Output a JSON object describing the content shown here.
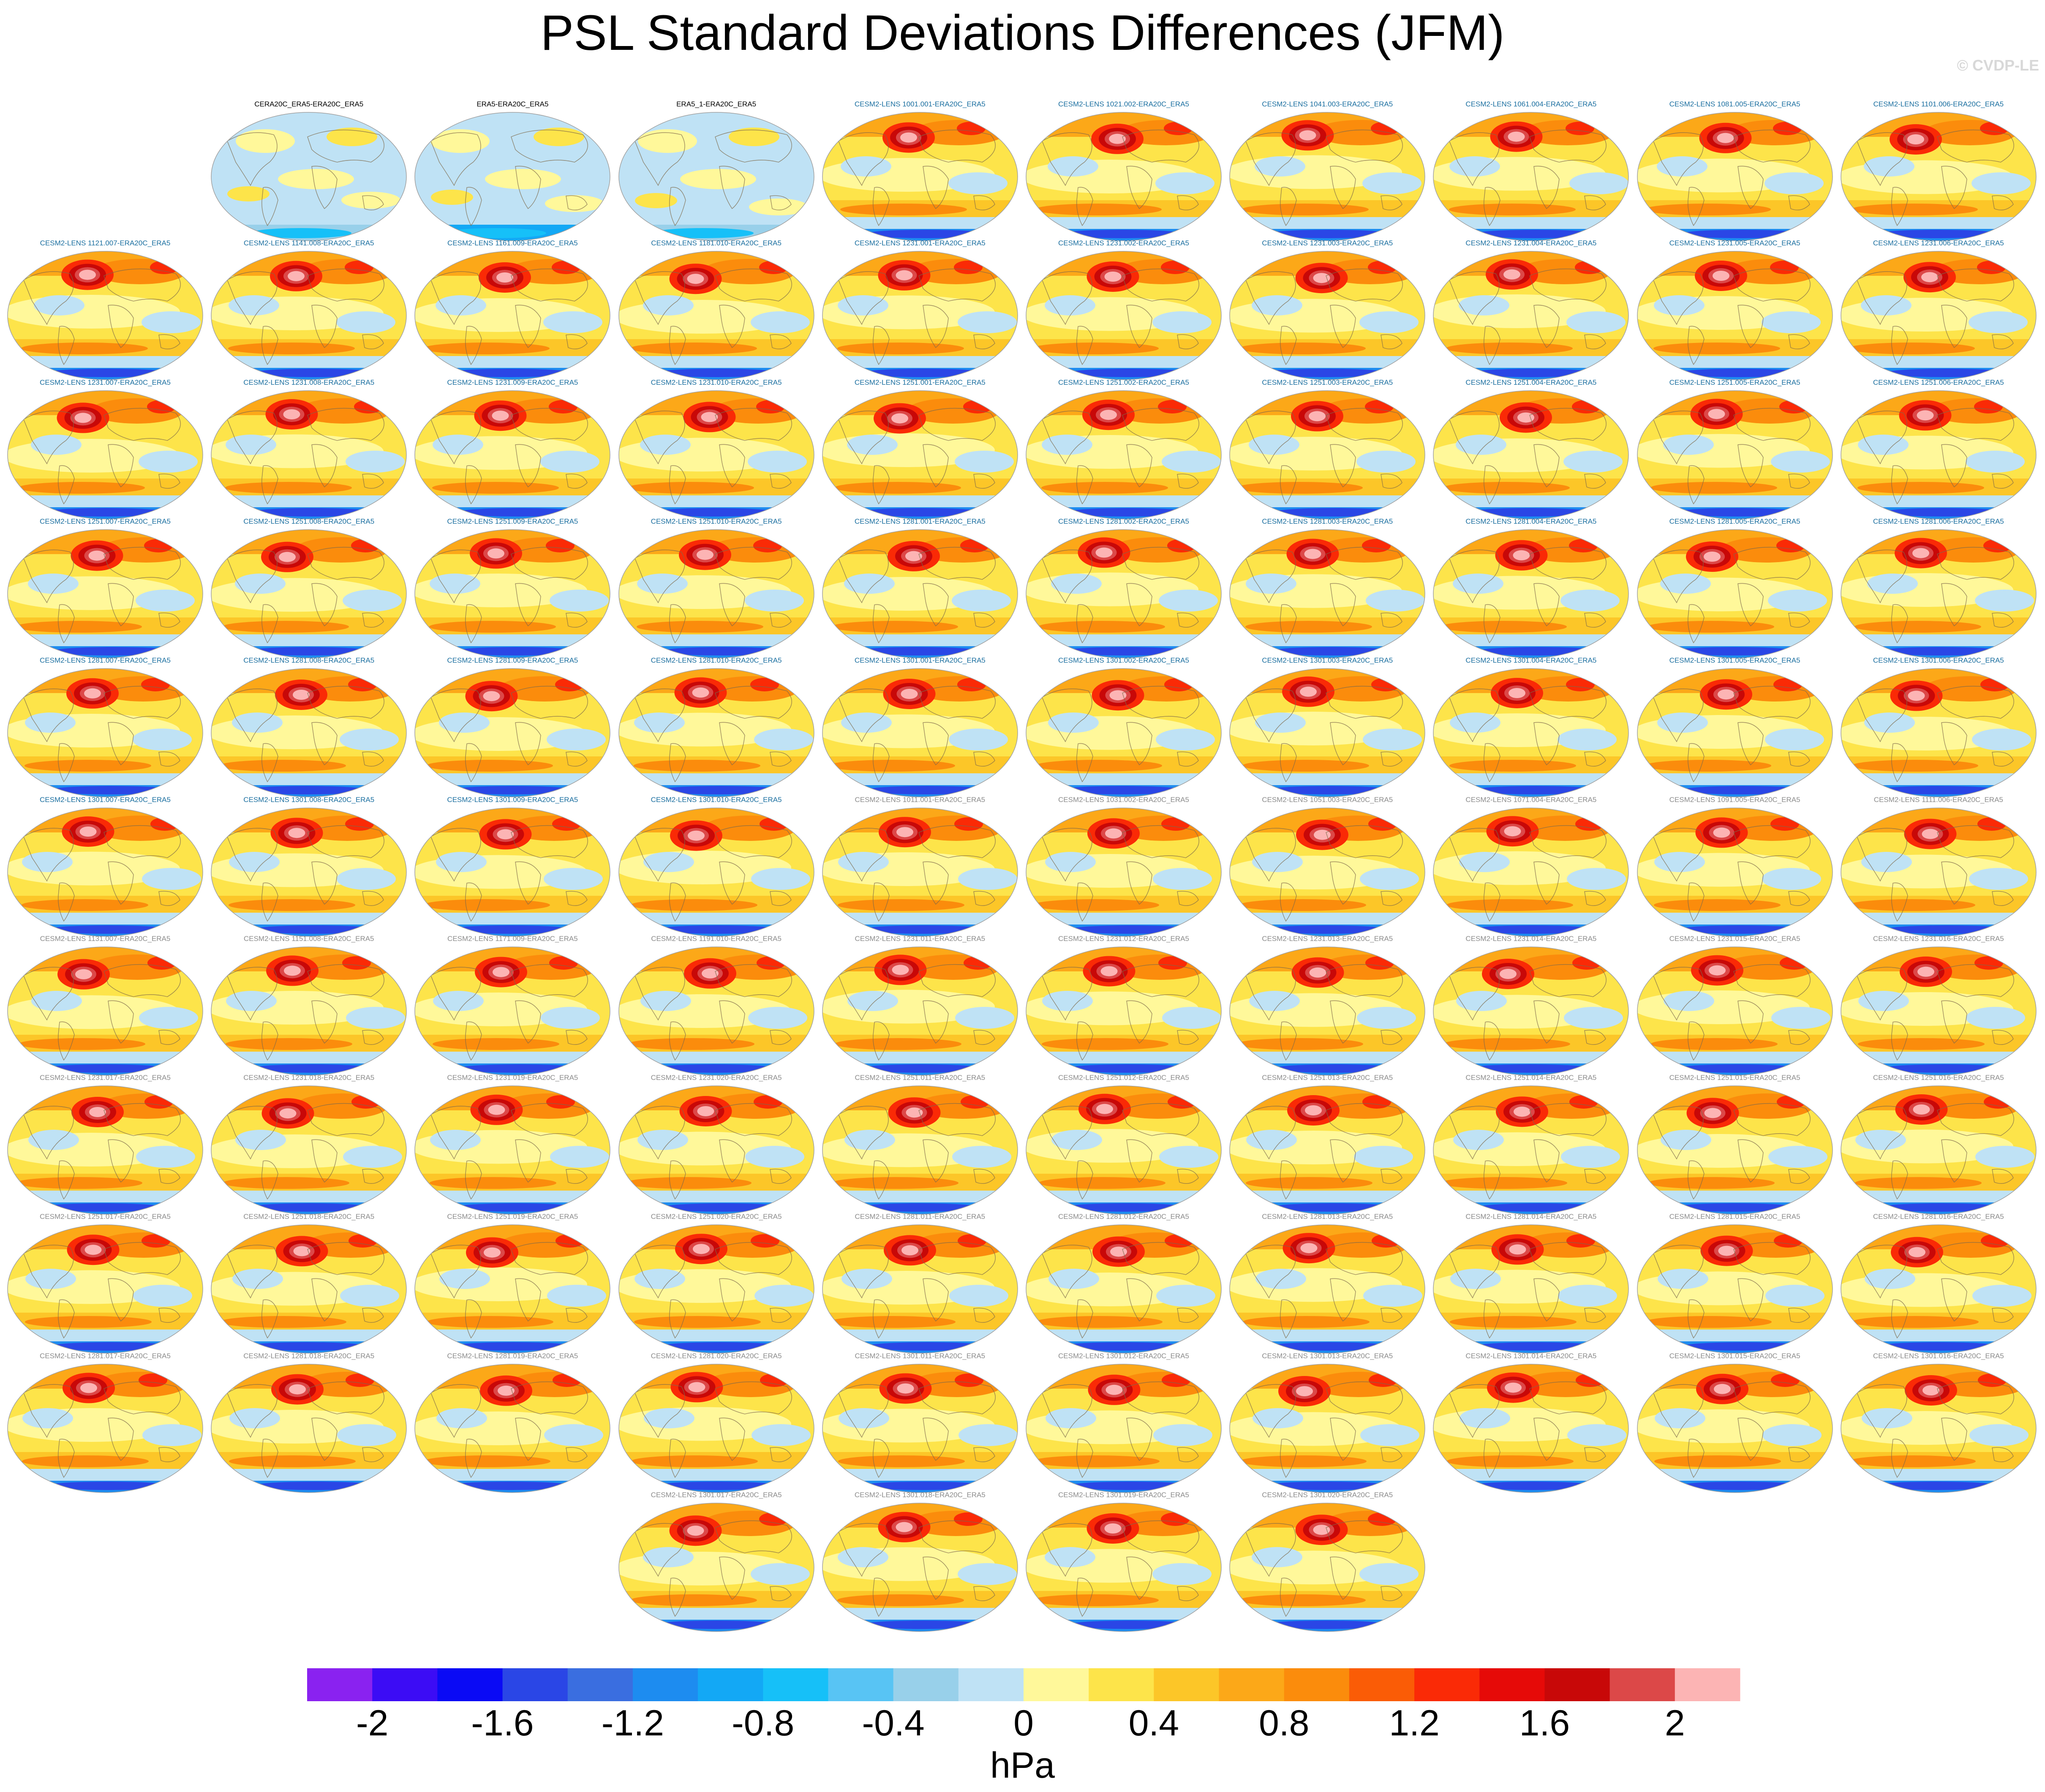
{
  "title": "PSL Standard Deviations Differences (JFM)",
  "watermark": "© CVDP-LE",
  "units": "hPa",
  "colorbar": {
    "colors": [
      "#8a22f0",
      "#3c0cf5",
      "#0a0af5",
      "#2a46e6",
      "#3a6ee0",
      "#1d8cf0",
      "#13a8f5",
      "#16c0f8",
      "#58c4f4",
      "#98d0ea",
      "#bfe2f5",
      "#fff89a",
      "#fde44a",
      "#fcc628",
      "#fca818",
      "#fb8c0c",
      "#fa5c06",
      "#fa2a06",
      "#e60a08",
      "#c80808",
      "#dc4848",
      "#fcb4b4"
    ],
    "tick_labels": [
      "-2",
      "-1.6",
      "-1.2",
      "-0.8",
      "-0.4",
      "0",
      "0.4",
      "0.8",
      "1.2",
      "1.6",
      "2"
    ]
  },
  "label_colors": {
    "obs": "#000000",
    "blue": "#1b6fa0",
    "gray": "#8c8c8c"
  },
  "panel_rows": [
    {
      "offset": 1,
      "panels": [
        {
          "label": "CERA20C_ERA5-ERA20C_ERA5",
          "style": "obs"
        },
        {
          "label": "ERA5-ERA20C_ERA5",
          "style": "obs"
        },
        {
          "label": "ERA5_1-ERA20C_ERA5",
          "style": "obs"
        },
        {
          "label": "CESM2-LENS 1001.001-ERA20C_ERA5",
          "style": "blue"
        },
        {
          "label": "CESM2-LENS 1021.002-ERA20C_ERA5",
          "style": "blue"
        },
        {
          "label": "CESM2-LENS 1041.003-ERA20C_ERA5",
          "style": "blue"
        },
        {
          "label": "CESM2-LENS 1061.004-ERA20C_ERA5",
          "style": "blue"
        },
        {
          "label": "CESM2-LENS 1081.005-ERA20C_ERA5",
          "style": "blue"
        },
        {
          "label": "CESM2-LENS 1101.006-ERA20C_ERA5",
          "style": "blue"
        }
      ]
    },
    {
      "offset": 0,
      "panels": [
        {
          "label": "CESM2-LENS 1121.007-ERA20C_ERA5",
          "style": "blue"
        },
        {
          "label": "CESM2-LENS 1141.008-ERA20C_ERA5",
          "style": "blue"
        },
        {
          "label": "CESM2-LENS 1161.009-ERA20C_ERA5",
          "style": "blue"
        },
        {
          "label": "CESM2-LENS 1181.010-ERA20C_ERA5",
          "style": "blue"
        },
        {
          "label": "CESM2-LENS 1231.001-ERA20C_ERA5",
          "style": "blue"
        },
        {
          "label": "CESM2-LENS 1231.002-ERA20C_ERA5",
          "style": "blue"
        },
        {
          "label": "CESM2-LENS 1231.003-ERA20C_ERA5",
          "style": "blue"
        },
        {
          "label": "CESM2-LENS 1231.004-ERA20C_ERA5",
          "style": "blue"
        },
        {
          "label": "CESM2-LENS 1231.005-ERA20C_ERA5",
          "style": "blue"
        },
        {
          "label": "CESM2-LENS 1231.006-ERA20C_ERA5",
          "style": "blue"
        }
      ]
    },
    {
      "offset": 0,
      "panels": [
        {
          "label": "CESM2-LENS 1231.007-ERA20C_ERA5",
          "style": "blue"
        },
        {
          "label": "CESM2-LENS 1231.008-ERA20C_ERA5",
          "style": "blue"
        },
        {
          "label": "CESM2-LENS 1231.009-ERA20C_ERA5",
          "style": "blue"
        },
        {
          "label": "CESM2-LENS 1231.010-ERA20C_ERA5",
          "style": "blue"
        },
        {
          "label": "CESM2-LENS 1251.001-ERA20C_ERA5",
          "style": "blue"
        },
        {
          "label": "CESM2-LENS 1251.002-ERA20C_ERA5",
          "style": "blue"
        },
        {
          "label": "CESM2-LENS 1251.003-ERA20C_ERA5",
          "style": "blue"
        },
        {
          "label": "CESM2-LENS 1251.004-ERA20C_ERA5",
          "style": "blue"
        },
        {
          "label": "CESM2-LENS 1251.005-ERA20C_ERA5",
          "style": "blue"
        },
        {
          "label": "CESM2-LENS 1251.006-ERA20C_ERA5",
          "style": "blue"
        }
      ]
    },
    {
      "offset": 0,
      "panels": [
        {
          "label": "CESM2-LENS 1251.007-ERA20C_ERA5",
          "style": "blue"
        },
        {
          "label": "CESM2-LENS 1251.008-ERA20C_ERA5",
          "style": "blue"
        },
        {
          "label": "CESM2-LENS 1251.009-ERA20C_ERA5",
          "style": "blue"
        },
        {
          "label": "CESM2-LENS 1251.010-ERA20C_ERA5",
          "style": "blue"
        },
        {
          "label": "CESM2-LENS 1281.001-ERA20C_ERA5",
          "style": "blue"
        },
        {
          "label": "CESM2-LENS 1281.002-ERA20C_ERA5",
          "style": "blue"
        },
        {
          "label": "CESM2-LENS 1281.003-ERA20C_ERA5",
          "style": "blue"
        },
        {
          "label": "CESM2-LENS 1281.004-ERA20C_ERA5",
          "style": "blue"
        },
        {
          "label": "CESM2-LENS 1281.005-ERA20C_ERA5",
          "style": "blue"
        },
        {
          "label": "CESM2-LENS 1281.006-ERA20C_ERA5",
          "style": "blue"
        }
      ]
    },
    {
      "offset": 0,
      "panels": [
        {
          "label": "CESM2-LENS 1281.007-ERA20C_ERA5",
          "style": "blue"
        },
        {
          "label": "CESM2-LENS 1281.008-ERA20C_ERA5",
          "style": "blue"
        },
        {
          "label": "CESM2-LENS 1281.009-ERA20C_ERA5",
          "style": "blue"
        },
        {
          "label": "CESM2-LENS 1281.010-ERA20C_ERA5",
          "style": "blue"
        },
        {
          "label": "CESM2-LENS 1301.001-ERA20C_ERA5",
          "style": "blue"
        },
        {
          "label": "CESM2-LENS 1301.002-ERA20C_ERA5",
          "style": "blue"
        },
        {
          "label": "CESM2-LENS 1301.003-ERA20C_ERA5",
          "style": "blue"
        },
        {
          "label": "CESM2-LENS 1301.004-ERA20C_ERA5",
          "style": "blue"
        },
        {
          "label": "CESM2-LENS 1301.005-ERA20C_ERA5",
          "style": "blue"
        },
        {
          "label": "CESM2-LENS 1301.006-ERA20C_ERA5",
          "style": "blue"
        }
      ]
    },
    {
      "offset": 0,
      "panels": [
        {
          "label": "CESM2-LENS 1301.007-ERA20C_ERA5",
          "style": "blue"
        },
        {
          "label": "CESM2-LENS 1301.008-ERA20C_ERA5",
          "style": "blue"
        },
        {
          "label": "CESM2-LENS 1301.009-ERA20C_ERA5",
          "style": "blue"
        },
        {
          "label": "CESM2-LENS 1301.010-ERA20C_ERA5",
          "style": "blue"
        },
        {
          "label": "CESM2-LENS 1011.001-ERA20C_ERA5",
          "style": "gray"
        },
        {
          "label": "CESM2-LENS 1031.002-ERA20C_ERA5",
          "style": "gray"
        },
        {
          "label": "CESM2-LENS 1051.003-ERA20C_ERA5",
          "style": "gray"
        },
        {
          "label": "CESM2-LENS 1071.004-ERA20C_ERA5",
          "style": "gray"
        },
        {
          "label": "CESM2-LENS 1091.005-ERA20C_ERA5",
          "style": "gray"
        },
        {
          "label": "CESM2-LENS 1111.006-ERA20C_ERA5",
          "style": "gray"
        }
      ]
    },
    {
      "offset": 0,
      "panels": [
        {
          "label": "CESM2-LENS 1131.007-ERA20C_ERA5",
          "style": "gray"
        },
        {
          "label": "CESM2-LENS 1151.008-ERA20C_ERA5",
          "style": "gray"
        },
        {
          "label": "CESM2-LENS 1171.009-ERA20C_ERA5",
          "style": "gray"
        },
        {
          "label": "CESM2-LENS 1191.010-ERA20C_ERA5",
          "style": "gray"
        },
        {
          "label": "CESM2-LENS 1231.011-ERA20C_ERA5",
          "style": "gray"
        },
        {
          "label": "CESM2-LENS 1231.012-ERA20C_ERA5",
          "style": "gray"
        },
        {
          "label": "CESM2-LENS 1231.013-ERA20C_ERA5",
          "style": "gray"
        },
        {
          "label": "CESM2-LENS 1231.014-ERA20C_ERA5",
          "style": "gray"
        },
        {
          "label": "CESM2-LENS 1231.015-ERA20C_ERA5",
          "style": "gray"
        },
        {
          "label": "CESM2-LENS 1231.016-ERA20C_ERA5",
          "style": "gray"
        }
      ]
    },
    {
      "offset": 0,
      "panels": [
        {
          "label": "CESM2-LENS 1231.017-ERA20C_ERA5",
          "style": "gray"
        },
        {
          "label": "CESM2-LENS 1231.018-ERA20C_ERA5",
          "style": "gray"
        },
        {
          "label": "CESM2-LENS 1231.019-ERA20C_ERA5",
          "style": "gray"
        },
        {
          "label": "CESM2-LENS 1231.020-ERA20C_ERA5",
          "style": "gray"
        },
        {
          "label": "CESM2-LENS 1251.011-ERA20C_ERA5",
          "style": "gray"
        },
        {
          "label": "CESM2-LENS 1251.012-ERA20C_ERA5",
          "style": "gray"
        },
        {
          "label": "CESM2-LENS 1251.013-ERA20C_ERA5",
          "style": "gray"
        },
        {
          "label": "CESM2-LENS 1251.014-ERA20C_ERA5",
          "style": "gray"
        },
        {
          "label": "CESM2-LENS 1251.015-ERA20C_ERA5",
          "style": "gray"
        },
        {
          "label": "CESM2-LENS 1251.016-ERA20C_ERA5",
          "style": "gray"
        }
      ]
    },
    {
      "offset": 0,
      "panels": [
        {
          "label": "CESM2-LENS 1251.017-ERA20C_ERA5",
          "style": "gray"
        },
        {
          "label": "CESM2-LENS 1251.018-ERA20C_ERA5",
          "style": "gray"
        },
        {
          "label": "CESM2-LENS 1251.019-ERA20C_ERA5",
          "style": "gray"
        },
        {
          "label": "CESM2-LENS 1251.020-ERA20C_ERA5",
          "style": "gray"
        },
        {
          "label": "CESM2-LENS 1281.011-ERA20C_ERA5",
          "style": "gray"
        },
        {
          "label": "CESM2-LENS 1281.012-ERA20C_ERA5",
          "style": "gray"
        },
        {
          "label": "CESM2-LENS 1281.013-ERA20C_ERA5",
          "style": "gray"
        },
        {
          "label": "CESM2-LENS 1281.014-ERA20C_ERA5",
          "style": "gray"
        },
        {
          "label": "CESM2-LENS 1281.015-ERA20C_ERA5",
          "style": "gray"
        },
        {
          "label": "CESM2-LENS 1281.016-ERA20C_ERA5",
          "style": "gray"
        }
      ]
    },
    {
      "offset": 0,
      "panels": [
        {
          "label": "CESM2-LENS 1281.017-ERA20C_ERA5",
          "style": "gray"
        },
        {
          "label": "CESM2-LENS 1281.018-ERA20C_ERA5",
          "style": "gray"
        },
        {
          "label": "CESM2-LENS 1281.019-ERA20C_ERA5",
          "style": "gray"
        },
        {
          "label": "CESM2-LENS 1281.020-ERA20C_ERA5",
          "style": "gray"
        },
        {
          "label": "CESM2-LENS 1301.011-ERA20C_ERA5",
          "style": "gray"
        },
        {
          "label": "CESM2-LENS 1301.012-ERA20C_ERA5",
          "style": "gray"
        },
        {
          "label": "CESM2-LENS 1301.013-ERA20C_ERA5",
          "style": "gray"
        },
        {
          "label": "CESM2-LENS 1301.014-ERA20C_ERA5",
          "style": "gray"
        },
        {
          "label": "CESM2-LENS 1301.015-ERA20C_ERA5",
          "style": "gray"
        },
        {
          "label": "CESM2-LENS 1301.016-ERA20C_ERA5",
          "style": "gray"
        }
      ]
    },
    {
      "offset": 3,
      "panels": [
        {
          "label": "CESM2-LENS 1301.017-ERA20C_ERA5",
          "style": "gray"
        },
        {
          "label": "CESM2-LENS 1301.018-ERA20C_ERA5",
          "style": "gray"
        },
        {
          "label": "CESM2-LENS 1301.019-ERA20C_ERA5",
          "style": "gray"
        },
        {
          "label": "CESM2-LENS 1301.020-ERA20C_ERA5",
          "style": "gray"
        }
      ]
    }
  ]
}
